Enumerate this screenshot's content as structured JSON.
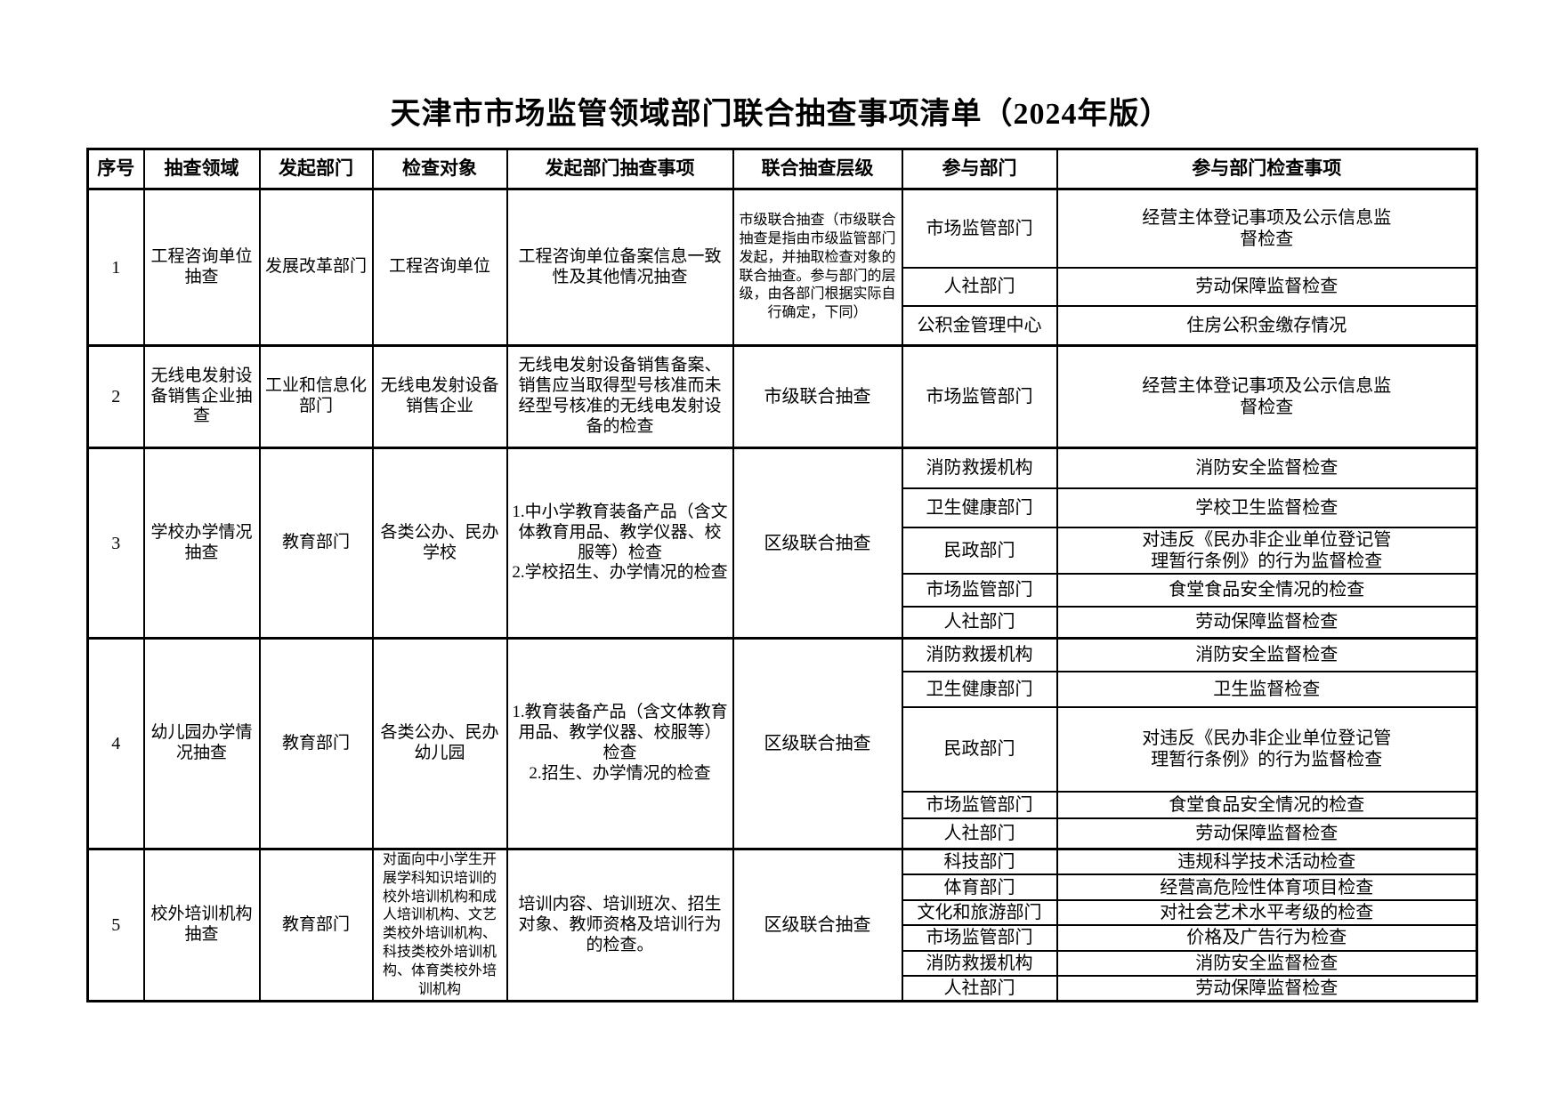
{
  "colors": {
    "text": "#000000",
    "background": "#ffffff",
    "border": "#000000"
  },
  "page": {
    "title": "天津市市场监管领域部门联合抽查事项清单（2024年版）"
  },
  "table": {
    "headers": [
      "序号",
      "抽查领域",
      "发起部门",
      "检查对象",
      "发起部门抽查事项",
      "联合抽查层级",
      "参与部门",
      "参与部门检查事项"
    ],
    "rows": [
      {
        "num": "1",
        "field": "工程咨询单位抽查",
        "initiator": "发展改革部门",
        "target": "工程咨询单位",
        "items": "工程咨询单位备案信息一致性及其他情况抽查",
        "level": "市级联合抽查（市级联合抽查是指由市级监管部门发起，并抽取检查对象的联合抽查。参与部门的层级，由各部门根据实际自行确定，下同）",
        "participants": [
          {
            "dept": "市场监管部门",
            "item": "经营主体登记事项及公示信息监督检查"
          },
          {
            "dept": "人社部门",
            "item": "劳动保障监督检查"
          },
          {
            "dept": "公积金管理中心",
            "item": "住房公积金缴存情况"
          }
        ]
      },
      {
        "num": "2",
        "field": "无线电发射设备销售企业抽查",
        "initiator": "工业和信息化部门",
        "target": "无线电发射设备销售企业",
        "items": "无线电发射设备销售备案、销售应当取得型号核准而未经型号核准的无线电发射设备的检查",
        "level": "市级联合抽查",
        "participants": [
          {
            "dept": "市场监管部门",
            "item": "经营主体登记事项及公示信息监督检查"
          }
        ]
      },
      {
        "num": "3",
        "field": "学校办学情况抽查",
        "initiator": "教育部门",
        "target": "各类公办、民办学校",
        "items": "1.中小学教育装备产品（含文体教育用品、教学仪器、校服等）检查\n2.学校招生、办学情况的检查",
        "level": "区级联合抽查",
        "participants": [
          {
            "dept": "消防救援机构",
            "item": "消防安全监督检查"
          },
          {
            "dept": "卫生健康部门",
            "item": "学校卫生监督检查"
          },
          {
            "dept": "民政部门",
            "item": "对违反《民办非企业单位登记管理暂行条例》的行为监督检查"
          },
          {
            "dept": "市场监管部门",
            "item": "食堂食品安全情况的检查"
          },
          {
            "dept": "人社部门",
            "item": "劳动保障监督检查"
          }
        ]
      },
      {
        "num": "4",
        "field": "幼儿园办学情况抽查",
        "initiator": "教育部门",
        "target": "各类公办、民办幼儿园",
        "items": "1.教育装备产品（含文体教育用品、教学仪器、校服等）检查\n2.招生、办学情况的检查",
        "level": "区级联合抽查",
        "participants": [
          {
            "dept": "消防救援机构",
            "item": "消防安全监督检查"
          },
          {
            "dept": "卫生健康部门",
            "item": "卫生监督检查"
          },
          {
            "dept": "民政部门",
            "item": "对违反《民办非企业单位登记管理暂行条例》的行为监督检查"
          },
          {
            "dept": "市场监管部门",
            "item": "食堂食品安全情况的检查"
          },
          {
            "dept": "人社部门",
            "item": "劳动保障监督检查"
          }
        ]
      },
      {
        "num": "5",
        "field": "校外培训机构抽查",
        "initiator": "教育部门",
        "target": "对面向中小学生开展学科知识培训的校外培训机构和成人培训机构、文艺类校外培训机构、科技类校外培训机构、体育类校外培训机构",
        "items": "培训内容、培训班次、招生对象、教师资格及培训行为的检查。",
        "level": "区级联合抽查",
        "participants": [
          {
            "dept": "科技部门",
            "item": "违规科学技术活动检查"
          },
          {
            "dept": "体育部门",
            "item": "经营高危险性体育项目检查"
          },
          {
            "dept": "文化和旅游部门",
            "item": "对社会艺术水平考级的检查"
          },
          {
            "dept": "市场监管部门",
            "item": "价格及广告行为检查"
          },
          {
            "dept": "消防救援机构",
            "item": "消防安全监督检查"
          },
          {
            "dept": "人社部门",
            "item": "劳动保障监督检查"
          }
        ]
      }
    ]
  }
}
